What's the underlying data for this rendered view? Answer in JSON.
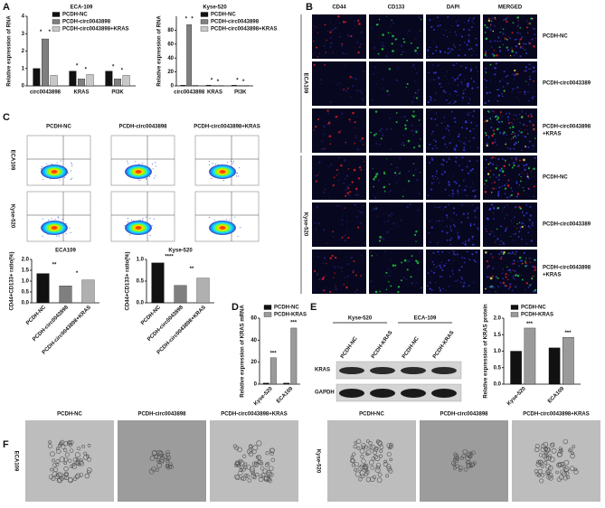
{
  "panel_labels": [
    "A",
    "B",
    "C",
    "D",
    "E",
    "F"
  ],
  "chart_data": [
    {
      "type": "bar",
      "title": "ECA-109",
      "y_label": "Relative expression of RNA",
      "categories": [
        "circ0043898",
        "KRAS",
        "PI3K"
      ],
      "series": [
        {
          "name": "PCDH-NC",
          "color": "#111111",
          "values": [
            1.0,
            0.85,
            0.85
          ]
        },
        {
          "name": "PCDH-circ0043898",
          "color": "#7f7f7f",
          "values": [
            2.7,
            0.4,
            0.4
          ]
        },
        {
          "name": "PCDH-circ0043898+KRAS",
          "color": "#c8c8c8",
          "values": [
            0.6,
            0.65,
            0.6
          ]
        }
      ],
      "ylim": [
        0,
        4
      ],
      "yticks": [
        0,
        1,
        2,
        3,
        4
      ],
      "annotations": [
        "*",
        "*",
        "*",
        "*",
        "*",
        "*"
      ]
    },
    {
      "type": "bar",
      "title": "Kyse-520",
      "y_label": "Relative expression of RNA",
      "categories": [
        "circ0043898",
        "KRAS",
        "PI3K"
      ],
      "series": [
        {
          "name": "PCDH-NC",
          "color": "#111111",
          "values": [
            1.0,
            1.0,
            0.9
          ]
        },
        {
          "name": "PCDH-circ0043898",
          "color": "#7f7f7f",
          "values": [
            88,
            0.4,
            0.4
          ]
        },
        {
          "name": "PCDH-circ0043898+KRAS",
          "color": "#c8c8c8",
          "values": [
            1.0,
            0.6,
            0.6
          ]
        }
      ],
      "ylim": [
        0,
        100
      ],
      "yticks": [
        0,
        20,
        40,
        60,
        80
      ],
      "annotations": [
        "*",
        "*",
        "*",
        "*",
        "*",
        "*"
      ]
    },
    {
      "type": "bar",
      "title": "ECA109",
      "y_label": "CD44+CD133+ ratio(%)",
      "categories": [
        "PCDH-NC",
        "PCDH-circ0043898",
        "PCDH-circ0043898+KRAS"
      ],
      "values": [
        1.35,
        0.78,
        1.05
      ],
      "colors": [
        "#111111",
        "#7f7f7f",
        "#b0b0b0"
      ],
      "ylim": [
        0,
        2
      ],
      "yticks": [
        {
          "value": 0,
          "label": "0.0"
        },
        {
          "value": 0.5,
          "label": "0.5"
        },
        {
          "value": 1,
          "label": "1.0"
        },
        {
          "value": 1.5,
          "label": "1.5"
        },
        {
          "value": 2,
          "label": "2.0"
        }
      ],
      "annotations": [
        "**",
        "*"
      ]
    },
    {
      "type": "bar",
      "title": "Kyse-520",
      "y_label": "CD44+CD133+ ratio(%)",
      "categories": [
        "PCDH-NC",
        "PCDH-circ0043898",
        "PCDH-circ0043898+KRAS"
      ],
      "values": [
        0.92,
        0.4,
        0.57
      ],
      "colors": [
        "#111111",
        "#7f7f7f",
        "#b0b0b0"
      ],
      "ylim": [
        0,
        1
      ],
      "yticks": [
        {
          "value": 0,
          "label": "0.0"
        },
        {
          "value": 0.5,
          "label": "0.5"
        },
        {
          "value": 1,
          "label": "1.0"
        }
      ],
      "annotations": [
        "****",
        "**"
      ]
    },
    {
      "type": "bar",
      "y_label": "Relative expression of KRAS  mRNA",
      "categories": [
        "Kyse-520",
        "ECA109"
      ],
      "series": [
        {
          "name": "PCDH-NC",
          "color": "#111111",
          "values": [
            1,
            1
          ]
        },
        {
          "name": "PCDH-KRAS",
          "color": "#9a9a9a",
          "values": [
            24,
            51
          ]
        }
      ],
      "ylim": [
        0,
        60
      ],
      "yticks": [
        0,
        20,
        40,
        60
      ],
      "annotations": [
        "***",
        "***"
      ]
    },
    {
      "type": "bar",
      "y_label": "Relative expression of KRAS  protein",
      "categories": [
        "Kyse-520",
        "ECA109"
      ],
      "series": [
        {
          "name": "PCDH-NC",
          "color": "#111111",
          "values": [
            1.0,
            1.1
          ]
        },
        {
          "name": "PCDH-KRAS",
          "color": "#9a9a9a",
          "values": [
            1.7,
            1.42
          ]
        }
      ],
      "ylim": [
        0,
        2
      ],
      "yticks": [
        {
          "value": 0,
          "label": "0.0"
        },
        {
          "value": 0.5,
          "label": "0.5"
        },
        {
          "value": 1,
          "label": "1.0"
        },
        {
          "value": 1.5,
          "label": "1.5"
        },
        {
          "value": 2,
          "label": "2.0"
        }
      ],
      "annotations": [
        "***",
        "***"
      ]
    }
  ],
  "panel_b": {
    "columns": [
      "CD44",
      "CD133",
      "DAPI",
      "MERGED"
    ],
    "groups": [
      {
        "name": "ECA109",
        "rows": [
          [
            "PCDH-NC"
          ],
          [
            "PCDH-circ0043389"
          ],
          [
            "PCDH-circ0043898",
            "+KRAS"
          ]
        ]
      },
      {
        "name": "Kyse-520",
        "rows": [
          [
            "PCDH-NC"
          ],
          [
            "PCDH-circ0043389"
          ],
          [
            "PCDH-circ0043898",
            "+KRAS"
          ]
        ]
      }
    ]
  },
  "panel_c": {
    "columns": [
      "PCDH-NC",
      "PCDH-circ0043898",
      "PCDH-circ0043898+KRAS"
    ],
    "rows": [
      "ECA109",
      "Kyse-520"
    ]
  },
  "panel_e": {
    "groups": [
      "Kyse-520",
      "ECA-109"
    ],
    "lanes": [
      "PCDH-NC",
      "PCDH-KRAS",
      "PCDH-NC",
      "PCDH-KRAS"
    ],
    "bands": [
      "KRAS",
      "GAPDH"
    ]
  },
  "panel_f": {
    "groups": [
      {
        "name": "ECA109",
        "columns": [
          "PCDH-NC",
          "PCDH-circ0043898",
          "PCDH-circ0043898+KRAS"
        ]
      },
      {
        "name": "Kyse-520",
        "columns": [
          "PCDH-NC",
          "PCDH-circ0043898",
          "PCDH-circ0043898+KRAS"
        ]
      }
    ]
  }
}
